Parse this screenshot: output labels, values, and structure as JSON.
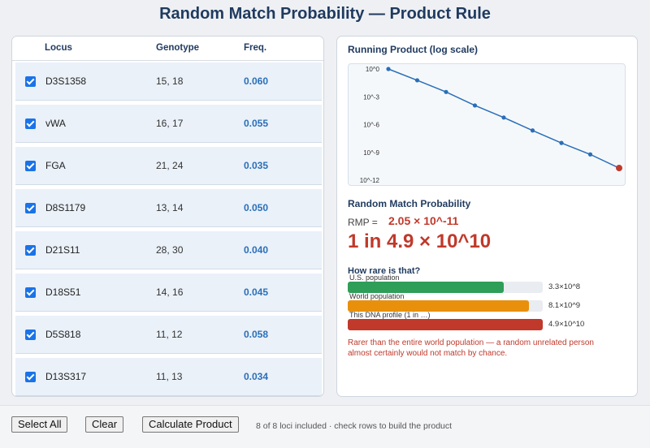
{
  "header": {
    "title": "Random Match Probability — Product Rule"
  },
  "table": {
    "columns": [
      "Locus",
      "Genotype",
      "Freq."
    ],
    "rows": [
      {
        "locus": "D3S1358",
        "genotype": "15, 18",
        "freq": "0.060",
        "checked": true
      },
      {
        "locus": "vWA",
        "genotype": "16, 17",
        "freq": "0.055",
        "checked": true
      },
      {
        "locus": "FGA",
        "genotype": "21, 24",
        "freq": "0.035",
        "checked": true
      },
      {
        "locus": "D8S1179",
        "genotype": "13, 14",
        "freq": "0.050",
        "checked": true
      },
      {
        "locus": "D21S11",
        "genotype": "28, 30",
        "freq": "0.040",
        "checked": true
      },
      {
        "locus": "D18S51",
        "genotype": "14, 16",
        "freq": "0.045",
        "checked": true
      },
      {
        "locus": "D5S818",
        "genotype": "11, 12",
        "freq": "0.058",
        "checked": true
      },
      {
        "locus": "D13S317",
        "genotype": "11, 13",
        "freq": "0.034",
        "checked": true
      }
    ]
  },
  "chart": {
    "title": "Running Product (log scale)",
    "y_tick_labels": [
      "10^0",
      "10^-3",
      "10^-6",
      "10^-9",
      "10^-12"
    ]
  },
  "chart_data": {
    "type": "line",
    "title": "Running Product (log scale)",
    "y_scale": "log",
    "ylim": [
      1e-12,
      1
    ],
    "y_ticks": [
      "10^0",
      "10^-3",
      "10^-6",
      "10^-9",
      "10^-12"
    ],
    "x": [
      0,
      1,
      2,
      3,
      4,
      5,
      6,
      7,
      8
    ],
    "values": [
      1,
      0.06,
      0.0033,
      0.0001155,
      5.775e-06,
      2.31e-07,
      1.04e-08,
      6.03e-10,
      2.05e-11
    ],
    "highlight_last": true,
    "grid": false
  },
  "result": {
    "heading": "Random Match Probability",
    "rmp_label": "RMP =",
    "rmp_value": "2.05 × 10^-11",
    "one_in": "1 in 4.9 × 10^10"
  },
  "rarity": {
    "heading": "How rare is that?",
    "bars": [
      {
        "label": "U.S. population",
        "value": "3.3×10^8",
        "fraction": 0.8,
        "color": "#2e9e58"
      },
      {
        "label": "World population",
        "value": "8.1×10^9",
        "fraction": 0.93,
        "color": "#e8900c"
      },
      {
        "label": "This DNA profile (1 in …)",
        "value": "4.9×10^10",
        "fraction": 1.0,
        "color": "#c0392b"
      }
    ],
    "note": "Rarer than the entire world population — a random unrelated person almost certainly would not match by chance."
  },
  "footer": {
    "select_all": "Select All",
    "clear": "Clear",
    "calculate": "Calculate Product",
    "status": "8 of 8 loci included · check rows to build the product"
  }
}
